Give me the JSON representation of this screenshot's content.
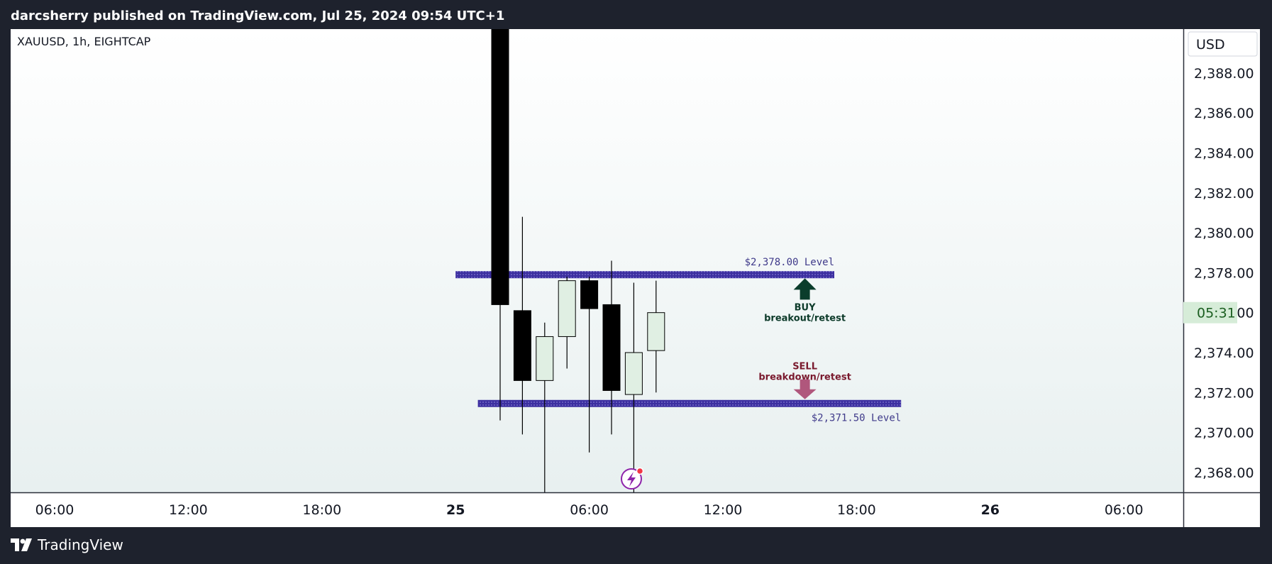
{
  "header": {
    "publisher_text": "darcsherry published on TradingView.com, Jul 25, 2024 09:54 UTC+1"
  },
  "footer": {
    "brand": "TradingView"
  },
  "colors": {
    "bear_body": "#000000",
    "bull_body": "#e0efe3",
    "level_line": "#3c2fa0",
    "buy_arrow": "#0b3d2c",
    "sell_arrow": "#b0577c",
    "countdown_bg": "#d6ecd8"
  },
  "chart_data": {
    "type": "candlestick",
    "title": "XAUUSD, 1h, EIGHTCAP",
    "currency": "USD",
    "countdown": "05:31",
    "ylim": [
      2367,
      2390.2
    ],
    "yticks": [
      {
        "value": 2388,
        "label": "2,388.00"
      },
      {
        "value": 2386,
        "label": "2,386.00"
      },
      {
        "value": 2384,
        "label": "2,384.00"
      },
      {
        "value": 2382,
        "label": "2,382.00"
      },
      {
        "value": 2380,
        "label": "2,380.00"
      },
      {
        "value": 2378,
        "label": "2,378.00"
      },
      {
        "value": 2376,
        "label": "2,376.00"
      },
      {
        "value": 2374,
        "label": "2,374.00"
      },
      {
        "value": 2372,
        "label": "2,372.00"
      },
      {
        "value": 2370,
        "label": "2,370.00"
      },
      {
        "value": 2368,
        "label": "2,368.00"
      }
    ],
    "xticks": [
      {
        "label": "06:00",
        "bold": false
      },
      {
        "label": "12:00",
        "bold": false
      },
      {
        "label": "18:00",
        "bold": false
      },
      {
        "label": "25",
        "bold": true
      },
      {
        "label": "06:00",
        "bold": false
      },
      {
        "label": "12:00",
        "bold": false
      },
      {
        "label": "18:00",
        "bold": false
      },
      {
        "label": "26",
        "bold": true
      },
      {
        "label": "06:00",
        "bold": false
      }
    ],
    "candles": [
      {
        "time": "Jul 25 02:00",
        "open": 2405.0,
        "high": 2410.0,
        "low": 2370.6,
        "close": 2376.4
      },
      {
        "time": "Jul 25 03:00",
        "open": 2376.1,
        "high": 2380.8,
        "low": 2369.9,
        "close": 2372.6
      },
      {
        "time": "Jul 25 04:00",
        "open": 2372.6,
        "high": 2375.5,
        "low": 2367.0,
        "close": 2374.8
      },
      {
        "time": "Jul 25 05:00",
        "open": 2374.8,
        "high": 2377.8,
        "low": 2373.2,
        "close": 2377.6
      },
      {
        "time": "Jul 25 06:00",
        "open": 2377.6,
        "high": 2377.8,
        "low": 2369.0,
        "close": 2376.2
      },
      {
        "time": "Jul 25 07:00",
        "open": 2376.4,
        "high": 2378.6,
        "low": 2369.9,
        "close": 2372.1
      },
      {
        "time": "Jul 25 08:00",
        "open": 2371.9,
        "high": 2377.5,
        "low": 2367.0,
        "close": 2374.0
      },
      {
        "time": "Jul 25 09:00",
        "open": 2374.1,
        "high": 2377.6,
        "low": 2372.0,
        "close": 2376.0
      }
    ],
    "levels": [
      {
        "name": "resistance",
        "value": 2377.9,
        "label": "$2,378.00 Level",
        "from": "Jul 25 00:00",
        "to": "Jul 25 17:00",
        "label_pos": "above"
      },
      {
        "name": "support",
        "value": 2371.45,
        "label": "$2,371.50 Level",
        "from": "Jul 25 01:00",
        "to": "Jul 25 20:00",
        "label_pos": "below"
      }
    ],
    "annotations": {
      "buy": {
        "line1": "BUY",
        "line2": "breakout/retest"
      },
      "sell": {
        "line1": "SELL",
        "line2": "breakdown/retest"
      }
    }
  }
}
